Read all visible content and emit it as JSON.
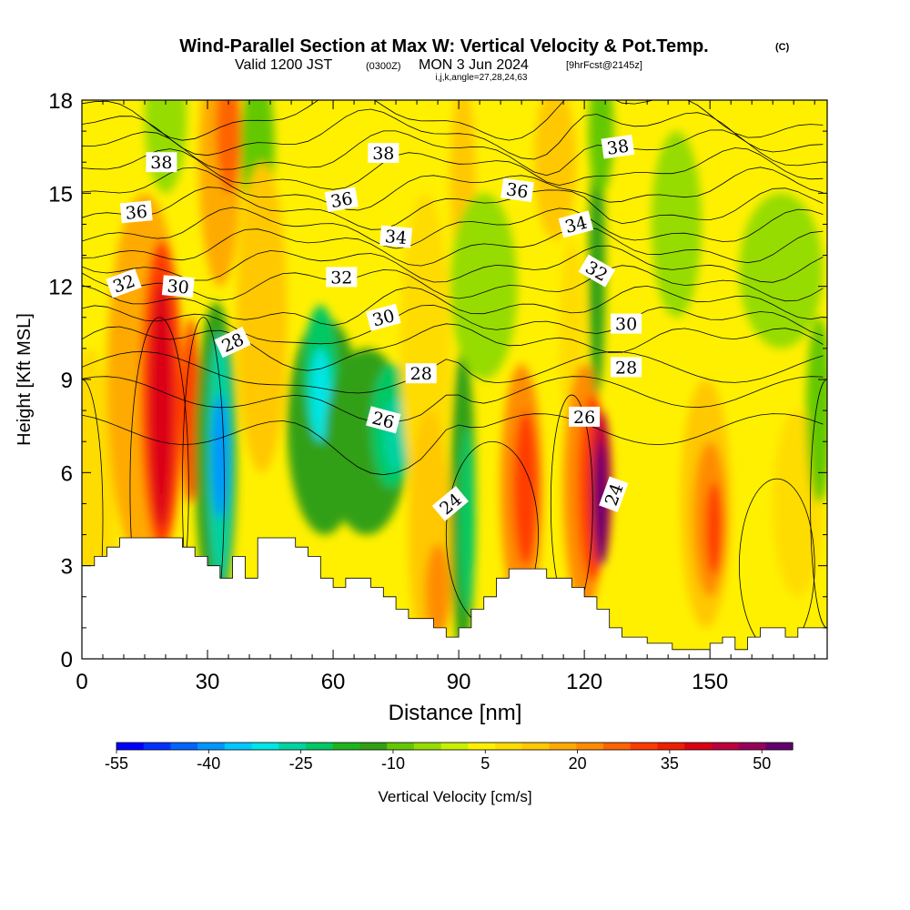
{
  "header": {
    "title": "Wind-Parallel Section at Max W: Vertical Velocity & Pot.Temp.",
    "title_unit": "(C)",
    "valid_prefix": "Valid 1200 JST",
    "valid_utc": "(0300Z)",
    "valid_date": "MON 3 Jun 2024",
    "forecast": "[9hrFcst@2145z]",
    "indices": "i,j,k,angle=27,28,24,63"
  },
  "chart_data": {
    "type": "heatmap",
    "title": "Wind-Parallel Section at Max W: Vertical Velocity & Pot.Temp.",
    "xlabel": "Distance [nm]",
    "ylabel": "Height [Kft MSL]",
    "xlim": [
      0,
      178
    ],
    "ylim": [
      0,
      18
    ],
    "x_ticks": [
      0,
      30,
      60,
      90,
      120,
      150
    ],
    "y_ticks": [
      0,
      3,
      6,
      9,
      12,
      15,
      18
    ],
    "colorbar": {
      "label": "Vertical Velocity [cm/s]",
      "tick_labels": [
        -55,
        -40,
        -25,
        -10,
        5,
        20,
        35,
        50
      ],
      "min": -55,
      "max": 55,
      "step": 5,
      "colors": [
        "#0000ff",
        "#0032ff",
        "#0064ff",
        "#0096ff",
        "#00c8ff",
        "#00e6e6",
        "#00d2a0",
        "#00c864",
        "#1eb41e",
        "#32a014",
        "#64c800",
        "#96dc00",
        "#c8f000",
        "#fff000",
        "#ffdc00",
        "#ffc800",
        "#ffaa00",
        "#ff8c00",
        "#ff6400",
        "#ff3c00",
        "#f01e00",
        "#dc0014",
        "#be003c",
        "#96005a",
        "#64006e"
      ]
    },
    "contour_labels": [
      {
        "text": "38",
        "x": 19,
        "y": 16.0,
        "rot": 0
      },
      {
        "text": "38",
        "x": 72,
        "y": 16.3,
        "rot": 0
      },
      {
        "text": "38",
        "x": 128,
        "y": 16.5,
        "rot": -8
      },
      {
        "text": "36",
        "x": 13,
        "y": 14.4,
        "rot": -5
      },
      {
        "text": "36",
        "x": 62,
        "y": 14.8,
        "rot": -10
      },
      {
        "text": "36",
        "x": 104,
        "y": 15.1,
        "rot": 8
      },
      {
        "text": "34",
        "x": 75,
        "y": 13.6,
        "rot": 5
      },
      {
        "text": "34",
        "x": 118,
        "y": 14.0,
        "rot": -15
      },
      {
        "text": "32",
        "x": 10,
        "y": 12.1,
        "rot": -20
      },
      {
        "text": "32",
        "x": 62,
        "y": 12.3,
        "rot": 0
      },
      {
        "text": "32",
        "x": 123,
        "y": 12.5,
        "rot": 30
      },
      {
        "text": "30",
        "x": 23,
        "y": 12.0,
        "rot": 5
      },
      {
        "text": "30",
        "x": 72,
        "y": 11.0,
        "rot": -15
      },
      {
        "text": "30",
        "x": 130,
        "y": 10.8,
        "rot": 0
      },
      {
        "text": "28",
        "x": 36,
        "y": 10.2,
        "rot": -25
      },
      {
        "text": "28",
        "x": 81,
        "y": 9.2,
        "rot": 0
      },
      {
        "text": "28",
        "x": 130,
        "y": 9.4,
        "rot": 0
      },
      {
        "text": "26",
        "x": 72,
        "y": 7.7,
        "rot": 15
      },
      {
        "text": "26",
        "x": 120,
        "y": 7.8,
        "rot": 0
      },
      {
        "text": "24",
        "x": 88,
        "y": 5.0,
        "rot": -40
      },
      {
        "text": "24",
        "x": 127,
        "y": 5.3,
        "rot": -70
      }
    ]
  }
}
